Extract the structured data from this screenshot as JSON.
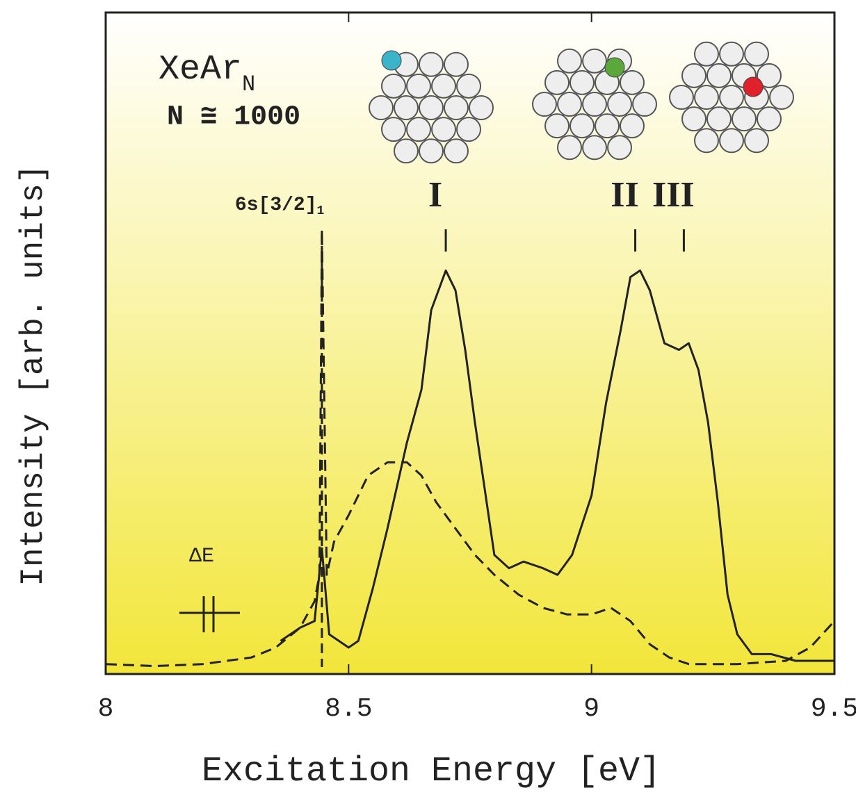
{
  "chart_data": {
    "type": "line",
    "title": "XeAr",
    "title_subscript": "N",
    "subtitle": "N ≅ 1000",
    "x_label": "Excitation Energy [eV]",
    "y_label": "Intensity [arb. units]",
    "xlim": [
      8,
      9.5
    ],
    "xticks": [
      8,
      8.5,
      9,
      9.5
    ],
    "ylim": [
      0,
      100
    ],
    "series": [
      {
        "style": "solid",
        "color": "#222222",
        "x": [
          8.36,
          8.4,
          8.43,
          8.445,
          8.46,
          8.48,
          8.5,
          8.52,
          8.55,
          8.58,
          8.62,
          8.65,
          8.67,
          8.7,
          8.72,
          8.74,
          8.76,
          8.78,
          8.8,
          8.83,
          8.86,
          8.9,
          8.93,
          8.96,
          9.0,
          9.03,
          9.06,
          9.08,
          9.1,
          9.12,
          9.15,
          9.18,
          9.2,
          9.22,
          9.24,
          9.26,
          9.28,
          9.3,
          9.33,
          9.37,
          9.42,
          9.5
        ],
        "values": [
          5,
          7,
          8,
          19,
          6,
          5,
          4,
          5,
          13,
          22,
          35,
          43,
          55,
          61,
          58,
          49,
          38,
          28,
          18,
          16,
          17,
          16,
          15,
          18,
          27,
          41,
          52,
          60,
          61,
          58,
          50,
          49,
          50,
          46,
          38,
          26,
          12,
          6,
          3,
          3,
          2,
          2
        ]
      },
      {
        "style": "dashed",
        "color": "#222222",
        "x": [
          8.0,
          8.1,
          8.2,
          8.3,
          8.35,
          8.4,
          8.43,
          8.44,
          8.445,
          8.455,
          8.47,
          8.5,
          8.54,
          8.58,
          8.62,
          8.65,
          8.68,
          8.72,
          8.76,
          8.8,
          8.85,
          8.9,
          8.95,
          9.0,
          9.04,
          9.08,
          9.12,
          9.16,
          9.2,
          9.3,
          9.4,
          9.45,
          9.5
        ],
        "values": [
          1.5,
          1.2,
          1.5,
          2.5,
          4,
          7,
          11,
          15,
          67,
          15,
          20,
          24,
          30,
          32,
          32,
          30,
          26,
          22,
          18,
          15,
          12,
          10,
          9,
          9,
          10,
          8,
          4.5,
          2.5,
          1.5,
          1.5,
          2,
          4,
          8
        ]
      }
    ],
    "annotations": [
      {
        "text": "6s[3/2]",
        "subscript": "1",
        "x": 8.445,
        "color": "#222222"
      },
      {
        "text": "I",
        "x": 8.7,
        "color": "#3bb3c9"
      },
      {
        "text": "II",
        "x": 9.09,
        "color": "#5aa83a"
      },
      {
        "text": "III",
        "x": 9.19,
        "color": "#e0202a"
      }
    ],
    "resolution_label": "ΔE"
  }
}
